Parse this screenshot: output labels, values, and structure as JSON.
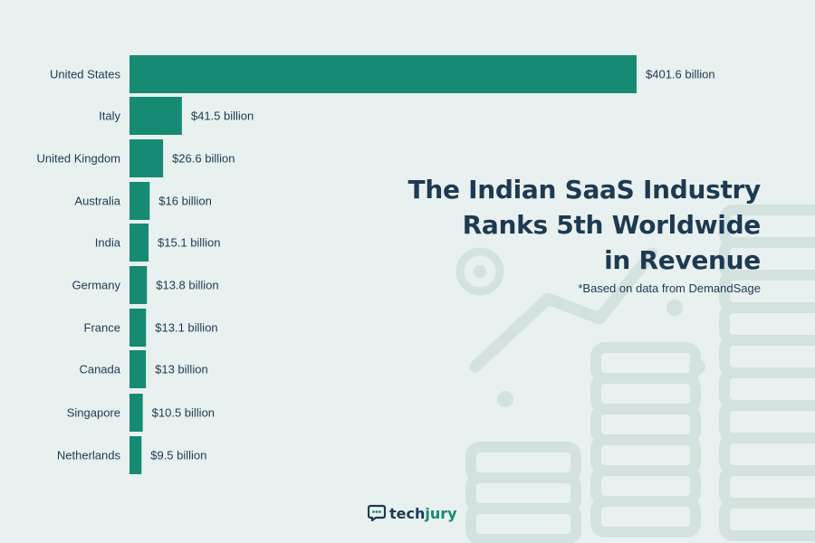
{
  "title_lines": [
    "The Indian SaaS Industry",
    "Ranks 5th Worldwide",
    "in Revenue"
  ],
  "subtitle": "*Based on data from DemandSage",
  "brand": {
    "prefix": "tech",
    "accent": "jury"
  },
  "colors": {
    "bar": "#178a73",
    "background": "#e8f1ef",
    "text": "#1e3a52",
    "decor": "#d3e2de"
  },
  "decor_icons": [
    "trend-line-decor-icon",
    "coin-stack-decor-icon"
  ],
  "chart_data": {
    "type": "bar",
    "orientation": "horizontal",
    "categories": [
      "United States",
      "Italy",
      "United Kingdom",
      "Australia",
      "India",
      "Germany",
      "France",
      "Canada",
      "Singapore",
      "Netherlands"
    ],
    "values": [
      401.6,
      41.5,
      26.6,
      16,
      15.1,
      13.8,
      13.1,
      13,
      10.5,
      9.5
    ],
    "data_labels": [
      "$401.6 billion",
      "$41.5 billion",
      "$26.6 billion",
      "$16 billion",
      "$15.1 billion",
      "$13.8 billion",
      "$13.1 billion",
      "$13 billion",
      "$10.5 billion",
      "$9.5 billion"
    ],
    "unit": "billion USD",
    "xlim": [
      0,
      401.6
    ],
    "title": "",
    "xlabel": "",
    "ylabel": "",
    "grid": false,
    "legend": "none"
  }
}
